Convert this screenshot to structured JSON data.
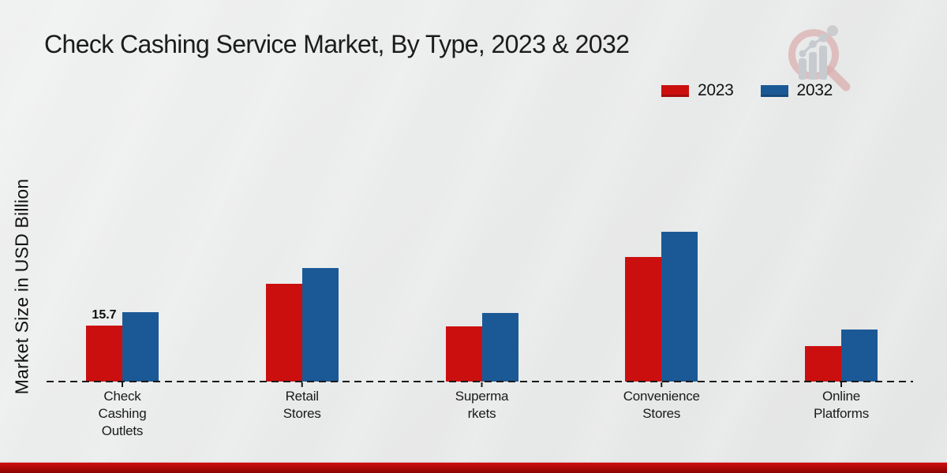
{
  "page": {
    "background_color": "#e8e9e9",
    "footer_bar_top_color": "#cf0e0e",
    "footer_bar_bottom_color": "#8e0303"
  },
  "chart_data": {
    "type": "bar",
    "title": "Check Cashing Service Market, By Type, 2023 & 2032",
    "ylabel": "Market Size in USD Billion",
    "xlabel": "",
    "categories": [
      "Check Cashing Outlets",
      "Retail Stores",
      "Supermarkets",
      "Convenience Stores",
      "Online Platforms"
    ],
    "category_label_lines": [
      [
        "Check",
        "Cashing",
        "Outlets"
      ],
      [
        "Retail",
        "Stores"
      ],
      [
        "Superma",
        "rkets"
      ],
      [
        "Convenience",
        "Stores"
      ],
      [
        "Online",
        "Platforms"
      ]
    ],
    "series": [
      {
        "name": "2023",
        "color": "#cb0f0f",
        "values": [
          15.7,
          27.3,
          15.3,
          34.8,
          10.0
        ]
      },
      {
        "name": "2032",
        "color": "#1b5996",
        "values": [
          19.4,
          31.7,
          19.2,
          41.8,
          14.6
        ]
      }
    ],
    "data_labels": [
      {
        "category_index": 0,
        "series": "2023",
        "text": "15.7"
      }
    ],
    "unit": "USD Billion",
    "ylim": [
      0,
      45
    ],
    "baseline_style": "dashed",
    "y_axis_ticks_visible": false,
    "grid": false,
    "legend_position": "top-right",
    "axis_line_color": "#1a1a1a"
  },
  "logo": {
    "name": "market-research-magnifier-logo",
    "glass_color": "#d9a9a9",
    "bars_color": "#c4c8ce"
  }
}
